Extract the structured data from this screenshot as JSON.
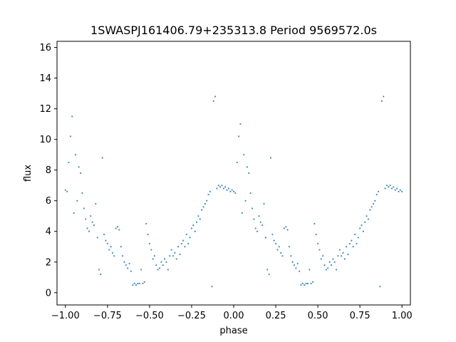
{
  "chart_data": {
    "type": "scatter",
    "title": "1SWASPJ161406.79+235313.8 Period 9569572.0s",
    "xlabel": "phase",
    "ylabel": "flux",
    "xlim": [
      -1.05,
      1.05
    ],
    "ylim": [
      -0.8,
      16.4
    ],
    "xticks": [
      -1.0,
      -0.75,
      -0.5,
      -0.25,
      0.0,
      0.25,
      0.5,
      0.75,
      1.0
    ],
    "xtick_labels": [
      "−1.00",
      "−0.75",
      "−0.50",
      "−0.25",
      "0.00",
      "0.25",
      "0.50",
      "0.75",
      "1.00"
    ],
    "yticks": [
      0,
      2,
      4,
      6,
      8,
      10,
      12,
      14,
      16
    ],
    "ytick_labels": [
      "0",
      "2",
      "4",
      "6",
      "8",
      "10",
      "12",
      "14",
      "16"
    ],
    "grid": false,
    "marker_color": "#1f77b4",
    "series": [
      {
        "points": [
          [
            -1.0,
            6.7
          ],
          [
            -0.99,
            6.6
          ],
          [
            -0.98,
            8.5
          ],
          [
            -0.97,
            10.2
          ],
          [
            -0.96,
            11.5
          ],
          [
            -0.95,
            5.2
          ],
          [
            -0.94,
            9.0
          ],
          [
            -0.93,
            6.0
          ],
          [
            -0.92,
            8.2
          ],
          [
            -0.91,
            7.8
          ],
          [
            -0.9,
            6.5
          ],
          [
            -0.89,
            5.5
          ],
          [
            -0.88,
            4.8
          ],
          [
            -0.87,
            4.2
          ],
          [
            -0.86,
            4.0
          ],
          [
            -0.85,
            5.0
          ],
          [
            -0.84,
            4.6
          ],
          [
            -0.83,
            4.4
          ],
          [
            -0.82,
            5.8
          ],
          [
            -0.81,
            3.6
          ],
          [
            -0.8,
            1.5
          ],
          [
            -0.79,
            1.2
          ],
          [
            -0.78,
            8.8
          ],
          [
            -0.77,
            3.8
          ],
          [
            -0.76,
            3.4
          ],
          [
            -0.75,
            3.2
          ],
          [
            -0.74,
            2.8
          ],
          [
            -0.73,
            3.0
          ],
          [
            -0.72,
            2.6
          ],
          [
            -0.71,
            2.4
          ],
          [
            -0.7,
            4.2
          ],
          [
            -0.69,
            4.3
          ],
          [
            -0.68,
            4.1
          ],
          [
            -0.67,
            3.0
          ],
          [
            -0.66,
            2.4
          ],
          [
            -0.65,
            2.0
          ],
          [
            -0.64,
            1.8
          ],
          [
            -0.63,
            1.6
          ],
          [
            -0.62,
            1.9
          ],
          [
            -0.61,
            1.4
          ],
          [
            -0.6,
            0.5
          ],
          [
            -0.59,
            0.6
          ],
          [
            -0.58,
            0.5
          ],
          [
            -0.57,
            0.6
          ],
          [
            -0.56,
            0.6
          ],
          [
            -0.55,
            1.5
          ],
          [
            -0.54,
            0.6
          ],
          [
            -0.53,
            0.7
          ],
          [
            -0.52,
            4.5
          ],
          [
            -0.51,
            3.8
          ],
          [
            -0.5,
            3.2
          ],
          [
            -0.49,
            2.8
          ],
          [
            -0.48,
            2.2
          ],
          [
            -0.47,
            2.4
          ],
          [
            -0.46,
            1.8
          ],
          [
            -0.45,
            1.5
          ],
          [
            -0.44,
            1.6
          ],
          [
            -0.43,
            2.0
          ],
          [
            -0.42,
            1.8
          ],
          [
            -0.41,
            2.2
          ],
          [
            -0.4,
            2.0
          ],
          [
            -0.39,
            1.5
          ],
          [
            -0.38,
            2.4
          ],
          [
            -0.37,
            2.8
          ],
          [
            -0.36,
            2.4
          ],
          [
            -0.35,
            2.6
          ],
          [
            -0.34,
            2.2
          ],
          [
            -0.33,
            3.0
          ],
          [
            -0.32,
            2.5
          ],
          [
            -0.31,
            3.2
          ],
          [
            -0.3,
            3.4
          ],
          [
            -0.29,
            3.0
          ],
          [
            -0.28,
            3.8
          ],
          [
            -0.27,
            3.2
          ],
          [
            -0.26,
            3.6
          ],
          [
            -0.25,
            4.2
          ],
          [
            -0.24,
            4.4
          ],
          [
            -0.23,
            4.0
          ],
          [
            -0.22,
            4.6
          ],
          [
            -0.21,
            5.0
          ],
          [
            -0.2,
            4.8
          ],
          [
            -0.19,
            5.4
          ],
          [
            -0.18,
            5.6
          ],
          [
            -0.17,
            5.8
          ],
          [
            -0.16,
            6.0
          ],
          [
            -0.15,
            6.4
          ],
          [
            -0.14,
            6.6
          ],
          [
            -0.13,
            0.4
          ],
          [
            -0.12,
            12.5
          ],
          [
            -0.11,
            12.8
          ],
          [
            -0.1,
            6.8
          ],
          [
            -0.09,
            7.0
          ],
          [
            -0.08,
            6.9
          ],
          [
            -0.07,
            7.0
          ],
          [
            -0.06,
            6.8
          ],
          [
            -0.05,
            6.9
          ],
          [
            -0.04,
            6.7
          ],
          [
            -0.03,
            6.8
          ],
          [
            -0.02,
            6.6
          ],
          [
            -0.01,
            6.7
          ],
          [
            0.0,
            6.6
          ],
          [
            0.01,
            6.5
          ],
          [
            0.02,
            8.5
          ],
          [
            0.03,
            10.2
          ],
          [
            0.04,
            11.0
          ],
          [
            0.05,
            5.2
          ],
          [
            0.06,
            9.0
          ],
          [
            0.07,
            6.0
          ],
          [
            0.08,
            8.2
          ],
          [
            0.09,
            7.8
          ],
          [
            0.1,
            6.5
          ],
          [
            0.11,
            5.5
          ],
          [
            0.12,
            4.8
          ],
          [
            0.13,
            4.2
          ],
          [
            0.14,
            4.0
          ],
          [
            0.15,
            5.0
          ],
          [
            0.16,
            4.6
          ],
          [
            0.17,
            4.4
          ],
          [
            0.18,
            5.8
          ],
          [
            0.19,
            3.6
          ],
          [
            0.2,
            1.5
          ],
          [
            0.21,
            1.2
          ],
          [
            0.22,
            8.8
          ],
          [
            0.23,
            3.8
          ],
          [
            0.24,
            3.4
          ],
          [
            0.25,
            3.2
          ],
          [
            0.26,
            2.8
          ],
          [
            0.27,
            3.0
          ],
          [
            0.28,
            2.6
          ],
          [
            0.29,
            2.4
          ],
          [
            0.3,
            4.2
          ],
          [
            0.31,
            4.3
          ],
          [
            0.32,
            4.1
          ],
          [
            0.33,
            3.0
          ],
          [
            0.34,
            2.4
          ],
          [
            0.35,
            2.0
          ],
          [
            0.36,
            1.8
          ],
          [
            0.37,
            1.6
          ],
          [
            0.38,
            1.9
          ],
          [
            0.39,
            1.4
          ],
          [
            0.4,
            0.5
          ],
          [
            0.41,
            0.6
          ],
          [
            0.42,
            0.5
          ],
          [
            0.43,
            0.6
          ],
          [
            0.44,
            0.6
          ],
          [
            0.45,
            1.5
          ],
          [
            0.46,
            0.6
          ],
          [
            0.47,
            0.7
          ],
          [
            0.48,
            4.5
          ],
          [
            0.49,
            3.8
          ],
          [
            0.5,
            3.2
          ],
          [
            0.51,
            2.8
          ],
          [
            0.52,
            2.2
          ],
          [
            0.53,
            2.4
          ],
          [
            0.54,
            1.8
          ],
          [
            0.55,
            1.5
          ],
          [
            0.56,
            1.6
          ],
          [
            0.57,
            2.0
          ],
          [
            0.58,
            1.8
          ],
          [
            0.59,
            2.2
          ],
          [
            0.6,
            2.0
          ],
          [
            0.61,
            1.5
          ],
          [
            0.62,
            2.4
          ],
          [
            0.63,
            2.8
          ],
          [
            0.64,
            2.4
          ],
          [
            0.65,
            2.6
          ],
          [
            0.66,
            2.2
          ],
          [
            0.67,
            3.0
          ],
          [
            0.68,
            2.5
          ],
          [
            0.69,
            3.2
          ],
          [
            0.7,
            3.4
          ],
          [
            0.71,
            3.0
          ],
          [
            0.72,
            3.8
          ],
          [
            0.73,
            3.2
          ],
          [
            0.74,
            3.6
          ],
          [
            0.75,
            4.2
          ],
          [
            0.76,
            4.4
          ],
          [
            0.77,
            4.0
          ],
          [
            0.78,
            4.6
          ],
          [
            0.79,
            5.0
          ],
          [
            0.8,
            4.8
          ],
          [
            0.81,
            5.4
          ],
          [
            0.82,
            5.6
          ],
          [
            0.83,
            5.8
          ],
          [
            0.84,
            6.0
          ],
          [
            0.85,
            6.4
          ],
          [
            0.86,
            6.6
          ],
          [
            0.87,
            0.4
          ],
          [
            0.88,
            12.5
          ],
          [
            0.89,
            12.8
          ],
          [
            0.9,
            6.8
          ],
          [
            0.91,
            7.0
          ],
          [
            0.92,
            6.9
          ],
          [
            0.93,
            7.0
          ],
          [
            0.94,
            6.8
          ],
          [
            0.95,
            6.9
          ],
          [
            0.96,
            6.7
          ],
          [
            0.97,
            6.8
          ],
          [
            0.98,
            6.6
          ],
          [
            0.99,
            6.7
          ],
          [
            1.0,
            6.6
          ]
        ]
      }
    ]
  }
}
